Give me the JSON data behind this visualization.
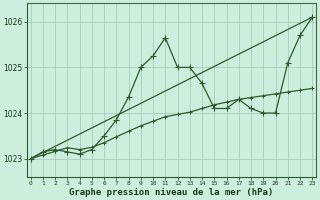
{
  "x": [
    0,
    1,
    2,
    3,
    4,
    5,
    6,
    7,
    8,
    9,
    10,
    11,
    12,
    13,
    14,
    15,
    16,
    17,
    18,
    19,
    20,
    21,
    22,
    23
  ],
  "line_jagged": [
    1023.0,
    1023.15,
    1023.2,
    1023.15,
    1023.1,
    1023.2,
    1023.5,
    1023.85,
    1024.35,
    1025.0,
    1025.25,
    1025.65,
    1025.0,
    1025.0,
    1024.65,
    1024.1,
    1024.1,
    1024.3,
    1024.1,
    1024.0,
    1024.0,
    1025.1,
    1025.7,
    1026.1
  ],
  "line_gradual": [
    1023.0,
    1023.08,
    1023.16,
    1023.24,
    1023.2,
    1023.25,
    1023.35,
    1023.48,
    1023.6,
    1023.72,
    1023.82,
    1023.92,
    1023.97,
    1024.02,
    1024.1,
    1024.18,
    1024.24,
    1024.3,
    1024.34,
    1024.38,
    1024.42,
    1024.46,
    1024.5,
    1024.54
  ],
  "line_color": "#2d5a2d",
  "bg_color": "#cceedd",
  "grid_color": "#aaccbb",
  "text_color": "#1a3a1a",
  "xlabel": "Graphe pression niveau de la mer (hPa)",
  "ylim": [
    1022.6,
    1026.4
  ],
  "xlim": [
    -0.3,
    23.3
  ],
  "yticks": [
    1023,
    1024,
    1025,
    1026
  ],
  "xticks": [
    0,
    1,
    2,
    3,
    4,
    5,
    6,
    7,
    8,
    9,
    10,
    11,
    12,
    13,
    14,
    15,
    16,
    17,
    18,
    19,
    20,
    21,
    22,
    23
  ]
}
